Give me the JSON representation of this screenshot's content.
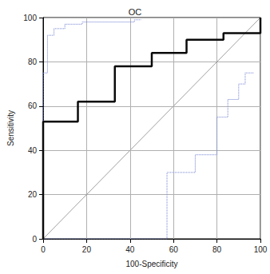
{
  "chart_data": {
    "type": "line",
    "title": "OC",
    "x_label": "100-Specificity",
    "y_label": "Sensitivity",
    "xlim": [
      0,
      100
    ],
    "ylim": [
      0,
      100
    ],
    "xticks": [
      0,
      20,
      40,
      60,
      80,
      100
    ],
    "yticks": [
      0,
      20,
      40,
      60,
      80,
      100
    ],
    "grid": true,
    "series": [
      {
        "color": "#0a0a0a",
        "line_style": "solid",
        "x": [
          0,
          0,
          16,
          16,
          33,
          33,
          50,
          50,
          66,
          66,
          83,
          83,
          100,
          100
        ],
        "values": [
          0,
          53,
          53,
          62,
          62,
          78,
          78,
          84,
          84,
          90,
          90,
          93,
          93,
          100
        ]
      },
      {
        "color": "#6f7fd0",
        "line_style": "dotted",
        "x": [
          0,
          0,
          2,
          2,
          5,
          5,
          10,
          10,
          18,
          18,
          42,
          42,
          45
        ],
        "values": [
          0,
          75,
          75,
          92,
          92,
          95,
          95,
          97,
          97,
          98,
          98,
          99,
          99
        ]
      },
      {
        "color": "#6f7fd0",
        "line_style": "dotted",
        "x": [
          0,
          57,
          57,
          70,
          70,
          80,
          80,
          85,
          85,
          90,
          90,
          93,
          93,
          97
        ],
        "values": [
          0,
          0,
          30,
          30,
          38,
          38,
          55,
          55,
          63,
          63,
          70,
          70,
          75,
          75
        ]
      },
      {
        "color": "#a0a0a0",
        "line_style": "solid",
        "x": [
          0,
          100
        ],
        "values": [
          0,
          100
        ]
      }
    ]
  }
}
